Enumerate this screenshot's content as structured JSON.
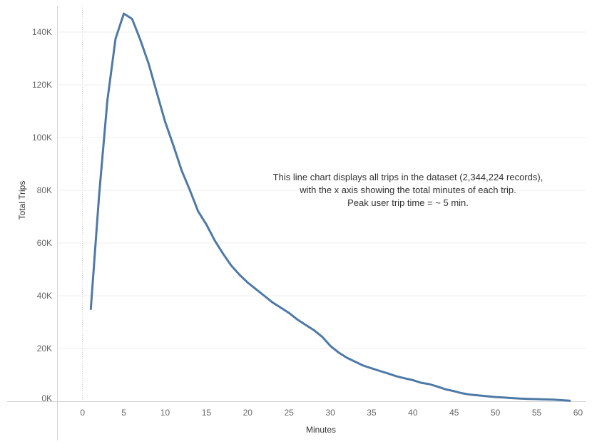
{
  "chart_data": {
    "type": "line",
    "title": "",
    "xlabel": "Minutes",
    "ylabel": "Total Trips",
    "xlim": [
      -3,
      61
    ],
    "ylim": [
      0,
      150000
    ],
    "x_ticks": [
      0,
      5,
      10,
      15,
      20,
      25,
      30,
      35,
      40,
      45,
      50,
      55,
      60
    ],
    "y_ticks": [
      {
        "value": 0,
        "label": "0K"
      },
      {
        "value": 20000,
        "label": "20K"
      },
      {
        "value": 40000,
        "label": "40K"
      },
      {
        "value": 60000,
        "label": "60K"
      },
      {
        "value": 80000,
        "label": "80K"
      },
      {
        "value": 100000,
        "label": "100K"
      },
      {
        "value": 120000,
        "label": "120K"
      },
      {
        "value": 140000,
        "label": "140K"
      }
    ],
    "grid": true,
    "line_color": "#4e79a7",
    "series": [
      {
        "x": [
          1,
          2,
          3,
          4,
          5,
          6,
          7,
          8,
          9,
          10,
          11,
          12,
          13,
          14,
          15,
          16,
          17,
          18,
          19,
          20,
          21,
          22,
          23,
          24,
          25,
          26,
          27,
          28,
          29,
          30,
          31,
          32,
          33,
          34,
          35,
          36,
          37,
          38,
          39,
          40,
          41,
          42,
          43,
          44,
          45,
          46,
          47,
          48,
          49,
          50,
          51,
          52,
          53,
          54,
          55,
          56,
          57,
          58,
          59
        ],
        "values": [
          35000,
          78000,
          114000,
          137500,
          147000,
          145000,
          137000,
          128000,
          117000,
          106000,
          97000,
          87500,
          80000,
          72000,
          67000,
          61000,
          56000,
          51500,
          48000,
          45000,
          42500,
          40000,
          37500,
          35500,
          33500,
          31000,
          29000,
          27000,
          24500,
          21000,
          18500,
          16500,
          15000,
          13500,
          12500,
          11500,
          10500,
          9500,
          8700,
          8000,
          7000,
          6500,
          5500,
          4500,
          3800,
          3000,
          2500,
          2200,
          1900,
          1600,
          1400,
          1200,
          1000,
          900,
          800,
          700,
          600,
          400,
          200
        ]
      }
    ],
    "annotation": [
      "This line chart displays all trips in the dataset (2,344,224 records),",
      "with the x axis showing the total minutes of each trip.",
      "Peak user trip time = ~ 5 min."
    ]
  }
}
